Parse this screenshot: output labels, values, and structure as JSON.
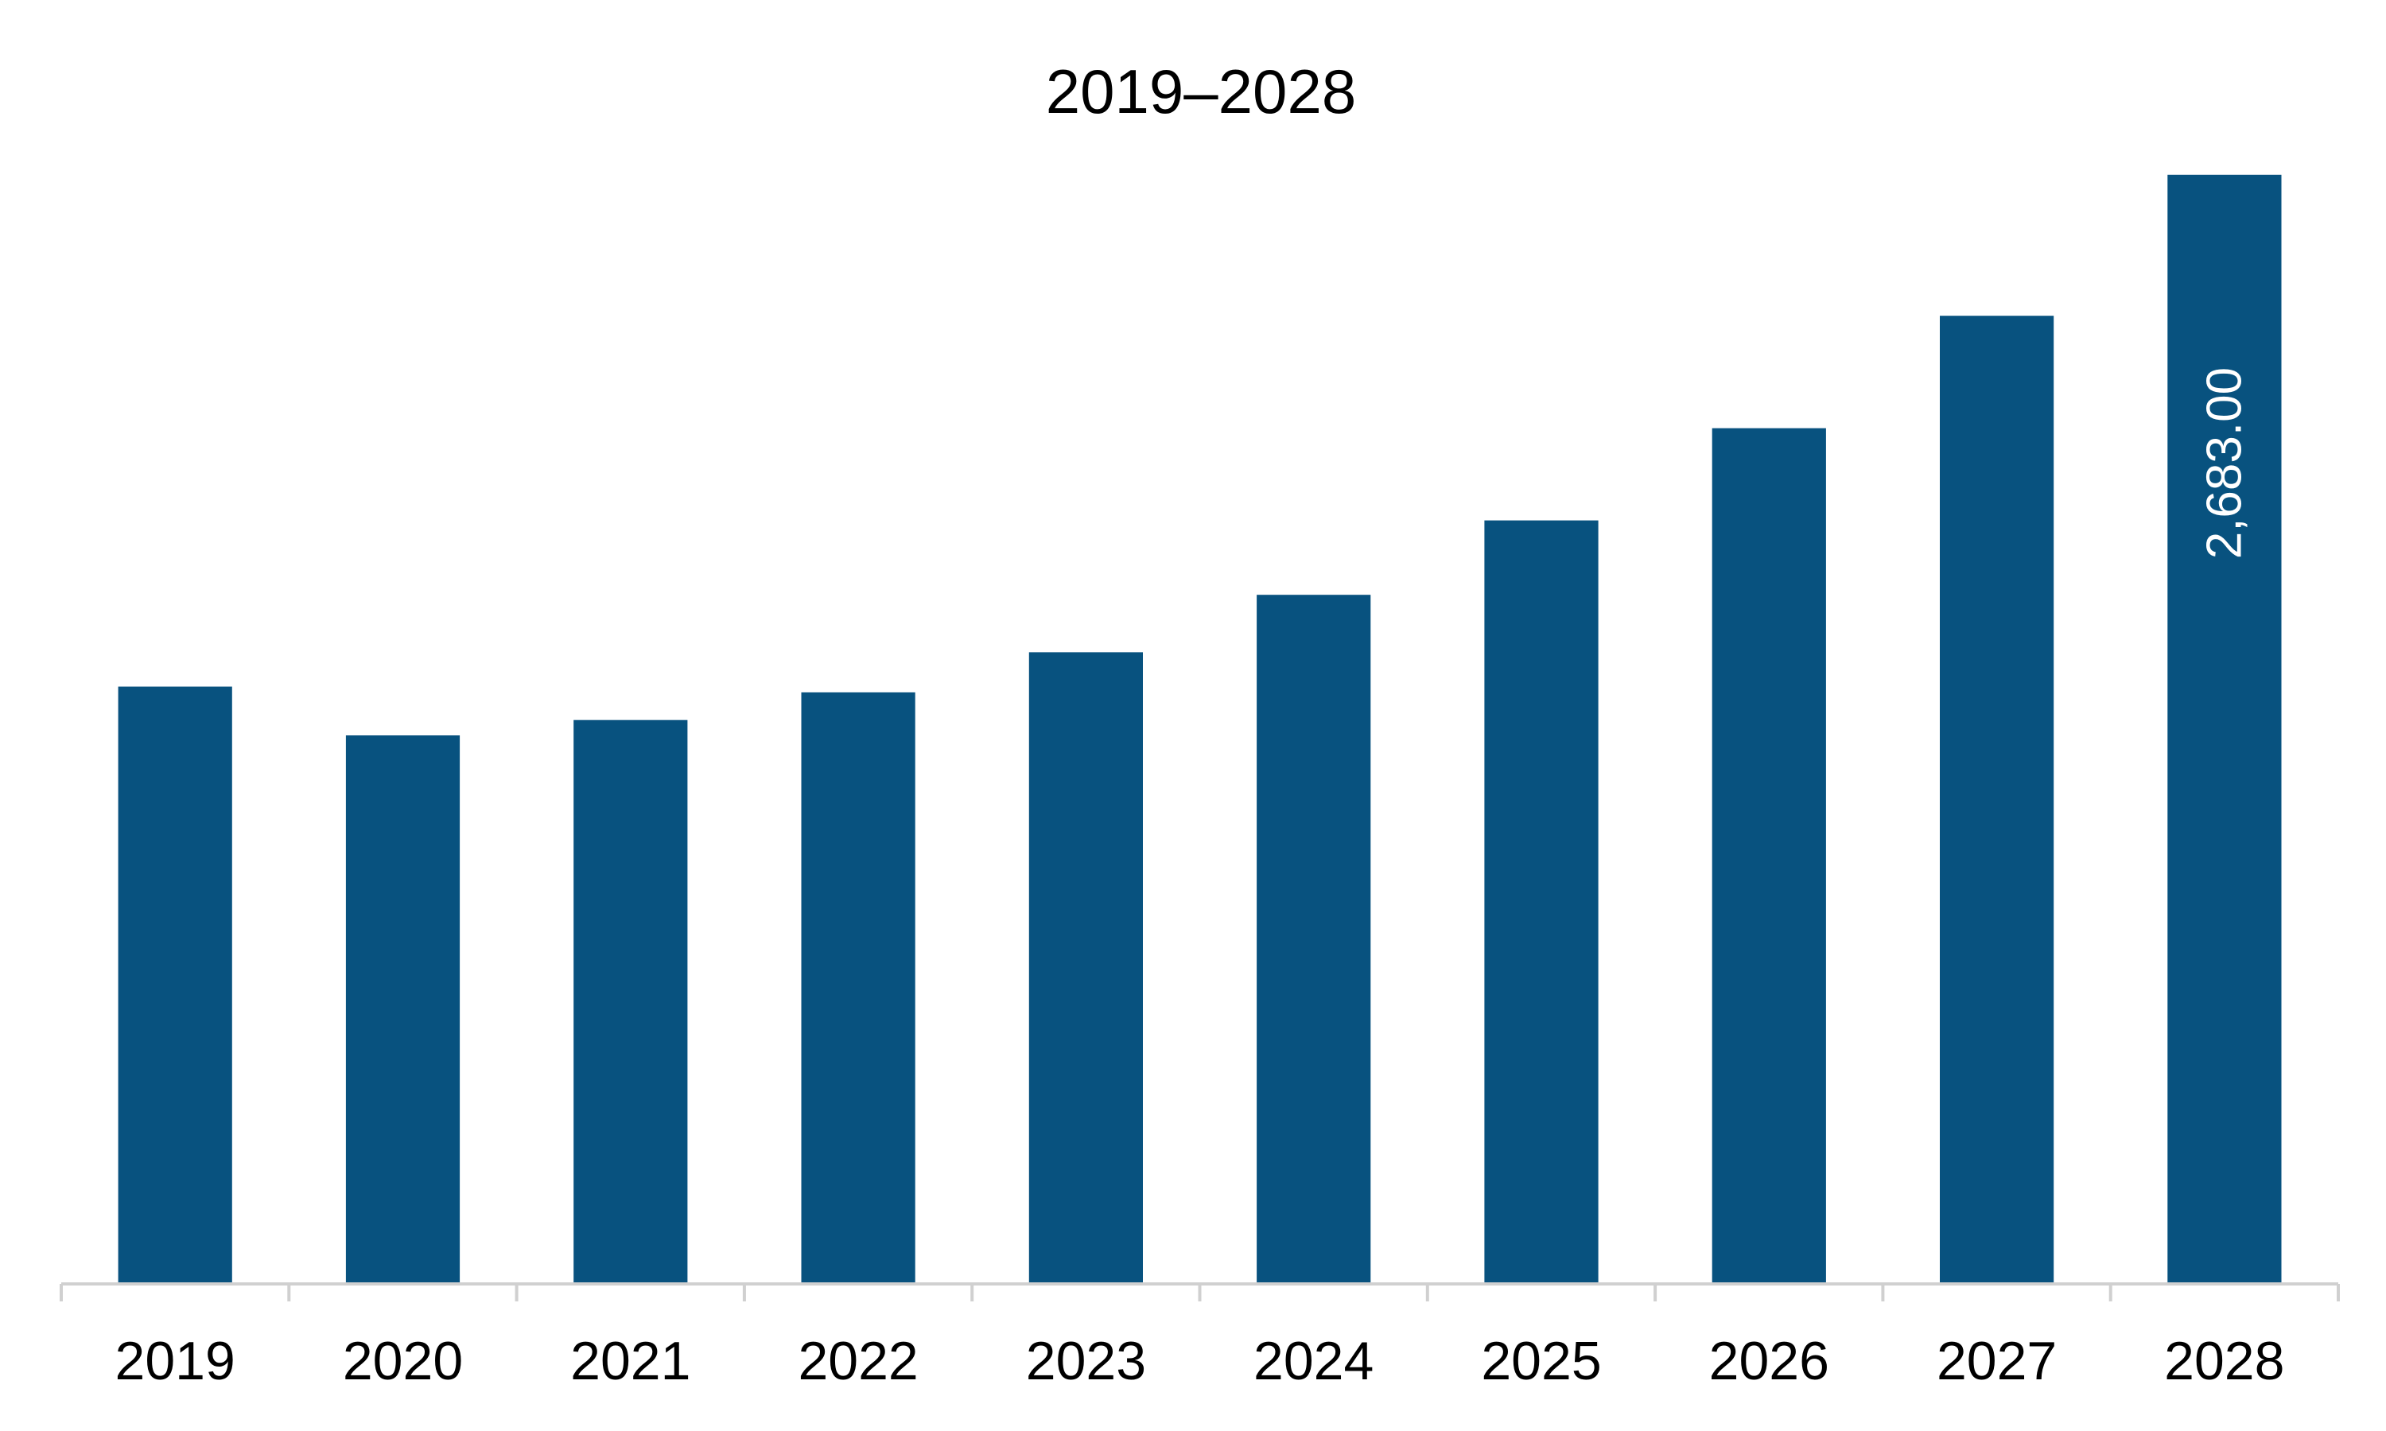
{
  "chart_data": {
    "type": "bar",
    "title": "2019–2028",
    "xlabel": "",
    "ylabel": "",
    "categories": [
      "2019",
      "2020",
      "2021",
      "2022",
      "2023",
      "2024",
      "2025",
      "2026",
      "2027",
      "2028"
    ],
    "values": [
      1445,
      1327,
      1364,
      1431,
      1528,
      1667,
      1847,
      2070,
      2342,
      2683
    ],
    "data_labels": [
      null,
      null,
      null,
      null,
      null,
      null,
      null,
      null,
      null,
      "2,683.00"
    ],
    "ylim": [
      0,
      2750
    ],
    "grid": false,
    "legend": "none",
    "bar_color": "#08527f",
    "axis_color": "#d0d0d0"
  }
}
